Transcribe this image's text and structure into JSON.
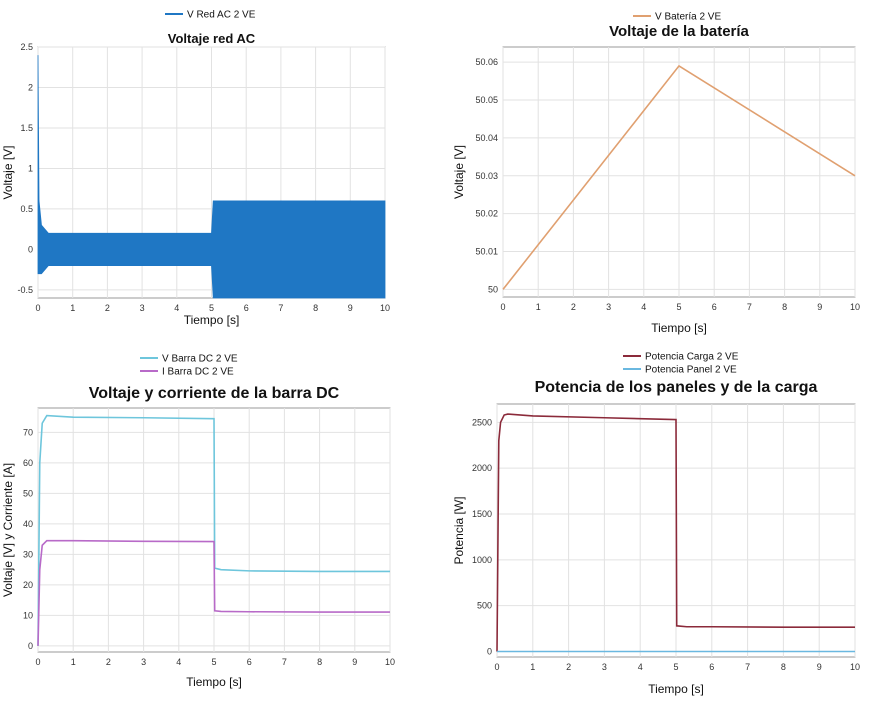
{
  "chart_data": [
    {
      "type": "line",
      "title": "Voltaje red AC",
      "xlabel": "Tiempo [s]",
      "ylabel": "Voltaje [V]",
      "xlim": [
        0,
        10
      ],
      "ylim": [
        -0.6,
        2.5
      ],
      "xticks": [
        "0",
        "1",
        "2",
        "3",
        "4",
        "5",
        "6",
        "7",
        "8",
        "9",
        "10"
      ],
      "yticks": [
        "-0.5",
        "0",
        "0.5",
        "1",
        "1.5",
        "2",
        "2.5"
      ],
      "grid": true,
      "legend_position": "top-center",
      "series": [
        {
          "name": "V Red AC 2 VE",
          "color": "#1f77c4",
          "envelope_upper": [
            [
              0,
              2.4
            ],
            [
              0.03,
              0.6
            ],
            [
              0.1,
              0.3
            ],
            [
              0.3,
              0.2
            ],
            [
              5,
              0.2
            ],
            [
              5.05,
              0.6
            ],
            [
              10,
              0.6
            ]
          ],
          "envelope_lower": [
            [
              0,
              -0.3
            ],
            [
              0.1,
              -0.3
            ],
            [
              0.3,
              -0.2
            ],
            [
              5,
              -0.2
            ],
            [
              5.05,
              -0.6
            ],
            [
              10,
              -0.6
            ]
          ]
        }
      ]
    },
    {
      "type": "line",
      "title": "Voltaje de la batería",
      "xlabel": "Tiempo [s]",
      "ylabel": "Voltaje [V]",
      "xlim": [
        0,
        10
      ],
      "ylim": [
        49.998,
        50.064
      ],
      "xticks": [
        "0",
        "1",
        "2",
        "3",
        "4",
        "5",
        "6",
        "7",
        "8",
        "9",
        "10"
      ],
      "yticks": [
        "50",
        "50.01",
        "50.02",
        "50.03",
        "50.04",
        "50.05",
        "50.06"
      ],
      "grid": true,
      "legend_position": "top-center",
      "series": [
        {
          "name": "V Batería 2 VE",
          "color": "#e0a070",
          "x": [
            0,
            5,
            10
          ],
          "y": [
            50.0,
            50.059,
            50.03
          ]
        }
      ]
    },
    {
      "type": "line",
      "title": "Voltaje y corriente de la barra DC",
      "xlabel": "Tiempo [s]",
      "ylabel": "Voltaje [V] y Corriente [A]",
      "xlim": [
        0,
        10
      ],
      "ylim": [
        -2,
        78
      ],
      "xticks": [
        "0",
        "1",
        "2",
        "3",
        "4",
        "5",
        "6",
        "7",
        "8",
        "9",
        "10"
      ],
      "yticks": [
        "0",
        "10",
        "20",
        "30",
        "40",
        "50",
        "60",
        "70"
      ],
      "grid": true,
      "legend_position": "top-center",
      "series": [
        {
          "name": "V Barra DC 2 VE",
          "color": "#6ec6dc",
          "x": [
            0,
            0.05,
            0.12,
            0.25,
            1,
            3,
            4.98,
            5.0,
            5.02,
            5.2,
            6,
            8,
            10
          ],
          "y": [
            0,
            60,
            73,
            75.5,
            75,
            74.8,
            74.5,
            74.5,
            25.5,
            25,
            24.6,
            24.4,
            24.4
          ]
        },
        {
          "name": "I Barra DC 2 VE",
          "color": "#b86ac8",
          "x": [
            0,
            0.05,
            0.12,
            0.25,
            1,
            3,
            4.98,
            5.0,
            5.02,
            5.2,
            6,
            8,
            10
          ],
          "y": [
            0,
            25,
            33,
            34.5,
            34.5,
            34.3,
            34.2,
            34.2,
            11.5,
            11.3,
            11.2,
            11.1,
            11.1
          ]
        }
      ]
    },
    {
      "type": "line",
      "title": "Potencia de los paneles y de la carga",
      "xlabel": "Tiempo [s]",
      "ylabel": "Potencia [W]",
      "xlim": [
        0,
        10
      ],
      "ylim": [
        -60,
        2700
      ],
      "xticks": [
        "0",
        "1",
        "2",
        "3",
        "4",
        "5",
        "6",
        "7",
        "8",
        "9",
        "10"
      ],
      "yticks": [
        "0",
        "500",
        "1000",
        "1500",
        "2000",
        "2500"
      ],
      "grid": true,
      "legend_position": "top-center",
      "series": [
        {
          "name": "Potencia Carga 2 VE",
          "color": "#8b2a3a",
          "x": [
            0,
            0.05,
            0.1,
            0.2,
            0.3,
            1,
            3,
            4.98,
            5.0,
            5.02,
            5.3,
            6,
            8,
            10
          ],
          "y": [
            0,
            2300,
            2500,
            2580,
            2590,
            2570,
            2550,
            2530,
            2530,
            280,
            270,
            270,
            265,
            265
          ]
        },
        {
          "name": "Potencia Panel 2 VE",
          "color": "#6ab8e0",
          "x": [
            0,
            10
          ],
          "y": [
            0,
            0
          ]
        }
      ]
    }
  ]
}
